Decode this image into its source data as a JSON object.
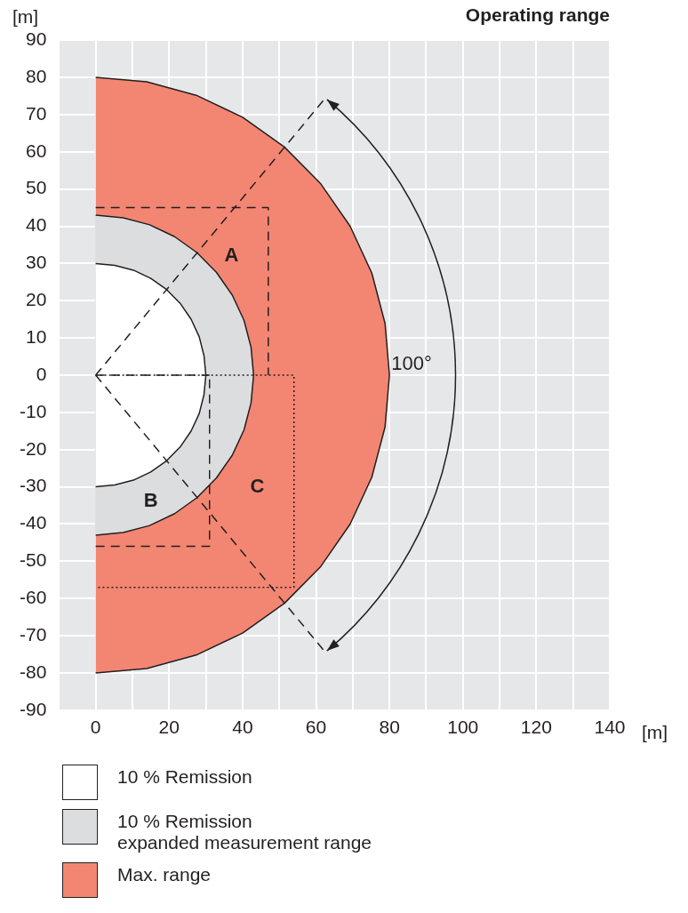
{
  "chart_data": {
    "type": "line",
    "title": "Operating range",
    "xlabel": "[m]",
    "ylabel": "[m]",
    "xlim": [
      -10,
      140
    ],
    "xticks": [
      {
        "value": -10,
        "label": null
      },
      0,
      {
        "value": 10,
        "label": null
      },
      20,
      {
        "value": 30,
        "label": null
      },
      40,
      {
        "value": 50,
        "label": null
      },
      60,
      {
        "value": 70,
        "label": null
      },
      80,
      {
        "value": 90,
        "label": null
      },
      100,
      {
        "value": 110,
        "label": null
      },
      120,
      {
        "value": 130,
        "label": null
      },
      140
    ],
    "ylim": [
      -90,
      90
    ],
    "yticks": [
      -90,
      -80,
      -70,
      -60,
      -50,
      -40,
      -30,
      -20,
      -10,
      0,
      10,
      20,
      30,
      40,
      50,
      60,
      70,
      80,
      90
    ],
    "grid": true,
    "legend": "bottom",
    "marker": "none",
    "series": [
      {
        "name": "Max. range",
        "type": "area",
        "color": "#f38672",
        "x": [
          0,
          13.9,
          27.4,
          40,
          51.4,
          61.3,
          69.3,
          75.2,
          78.8,
          80,
          78.8,
          75.2,
          69.3,
          61.3,
          51.4,
          40,
          27.4,
          13.9,
          0
        ],
        "values": [
          80,
          78.8,
          75.2,
          69.3,
          61.3,
          51.4,
          40,
          27.4,
          13.9,
          0,
          -13.9,
          -27.4,
          -40,
          -51.4,
          -61.3,
          -69.3,
          -75.2,
          -78.8,
          -80
        ]
      },
      {
        "name": "10 % Remission\nexpanded measurement range",
        "type": "area",
        "color": "#dcdddf",
        "x": [
          0,
          7.5,
          14.7,
          21.5,
          27.6,
          32.9,
          37.2,
          40.4,
          42.3,
          43,
          42.3,
          40.4,
          37.2,
          32.9,
          27.6,
          21.5,
          14.7,
          7.5,
          0
        ],
        "values": [
          43,
          42.3,
          40.4,
          37.2,
          32.9,
          27.6,
          21.5,
          14.7,
          7.5,
          0,
          -7.5,
          -14.7,
          -21.5,
          -27.6,
          -32.9,
          -37.2,
          -40.4,
          -42.3,
          -43
        ]
      },
      {
        "name": "10 % Remission",
        "type": "area",
        "color": "#ffffff",
        "x": [
          0,
          5.2,
          10.3,
          15,
          19.3,
          23,
          26,
          28.2,
          29.5,
          30,
          29.5,
          28.2,
          26,
          23,
          19.3,
          15,
          10.3,
          5.2,
          0
        ],
        "values": [
          30,
          29.5,
          28.2,
          26,
          23,
          19.3,
          15,
          10.3,
          5.2,
          0,
          -5.2,
          -10.3,
          -15,
          -19.3,
          -23,
          -26,
          -28.2,
          -29.5,
          -30
        ]
      },
      {
        "type": "line",
        "line_style": "dashed",
        "color": "#231f20",
        "x": [
          0,
          47,
          47
        ],
        "values": [
          45,
          45,
          0
        ]
      },
      {
        "type": "line",
        "line_style": "dashed",
        "color": "#231f20",
        "x": [
          0,
          31,
          31
        ],
        "values": [
          -46,
          -46,
          0
        ]
      },
      {
        "type": "line",
        "line_style": "dashed",
        "color": "#231f20",
        "x": [
          0,
          31
        ],
        "values": [
          0,
          0
        ]
      },
      {
        "type": "line",
        "line_style": "dotted",
        "color": "#231f20",
        "x": [
          0,
          54,
          54,
          0
        ],
        "values": [
          0,
          0,
          -57,
          -57
        ]
      },
      {
        "type": "line",
        "line_style": "dashed",
        "color": "#231f20",
        "x": [
          0,
          63
        ],
        "values": [
          0,
          75
        ]
      },
      {
        "type": "line",
        "line_style": "dashed",
        "color": "#231f20",
        "x": [
          0,
          63
        ],
        "values": [
          0,
          -75
        ]
      }
    ],
    "annotations": [
      "A",
      "B",
      "C",
      "100°"
    ]
  }
}
